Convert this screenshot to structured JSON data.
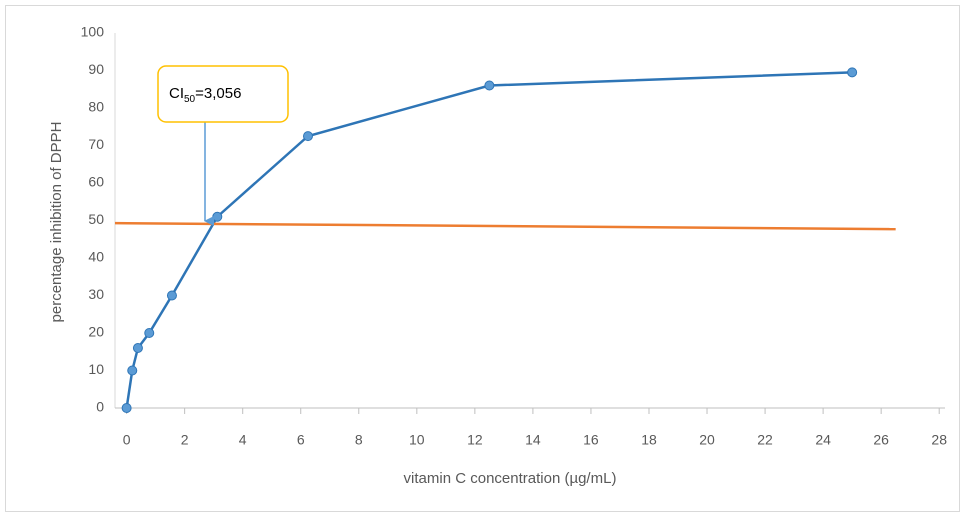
{
  "chart_data": {
    "type": "line",
    "xlabel": "vitamin C concentration (µg/mL)",
    "ylabel": "percentage inhibition of DPPH",
    "annotation": {
      "parts": [
        "CI",
        "50",
        "=3,056"
      ]
    },
    "series": [
      {
        "color": "#2e75b6",
        "marker_color": "#5b9bd5",
        "markers": true,
        "x": [
          0,
          0.195,
          0.39,
          0.78,
          1.5625,
          3.125,
          6.25,
          12.5,
          25
        ],
        "values": [
          0,
          10,
          16,
          20,
          30,
          51,
          72.5,
          86,
          89.5
        ]
      },
      {
        "color": "#ed7d31",
        "markers": false,
        "x": [
          -0.4,
          26.5
        ],
        "values": [
          49.3,
          47.7
        ]
      }
    ],
    "xlim": [
      -0.4,
      28.2
    ],
    "xticks": [
      0,
      2,
      4,
      6,
      8,
      10,
      12,
      14,
      16,
      18,
      20,
      22,
      24,
      26,
      28
    ],
    "ylim": [
      0,
      100
    ],
    "yticks": [
      0,
      10,
      20,
      30,
      40,
      50,
      60,
      70,
      80,
      90,
      100
    ]
  }
}
